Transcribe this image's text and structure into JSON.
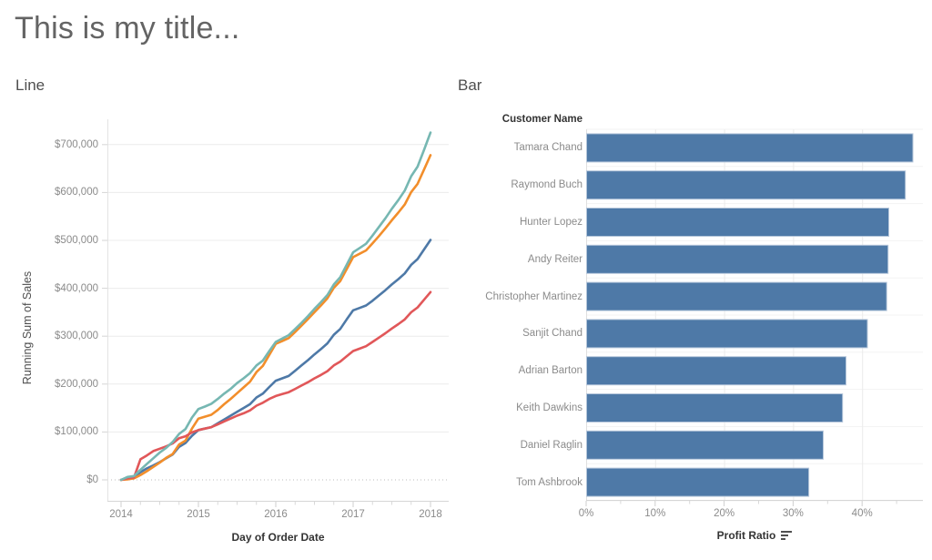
{
  "page": {
    "title": "This is my title..."
  },
  "line_panel": {
    "title": "Line"
  },
  "bar_panel": {
    "title": "Bar"
  },
  "chart_data": [
    {
      "id": "line-chart",
      "type": "line",
      "panel_title": "Line",
      "xlabel": "Day of Order Date",
      "ylabel": "Running Sum of Sales",
      "x_tick_labels": [
        "2014",
        "2015",
        "2016",
        "2017",
        "2018"
      ],
      "x_tick_years": [
        2014,
        2015,
        2016,
        2017,
        2018
      ],
      "y_tick_labels": [
        "$0",
        "$100,000",
        "$200,000",
        "$300,000",
        "$400,000",
        "$500,000",
        "$600,000",
        "$700,000"
      ],
      "y_tick_values_k": [
        0,
        100,
        200,
        300,
        400,
        500,
        600,
        700
      ],
      "x_start_year": 2014,
      "x_step_years": 0.0833333,
      "values_unit": "USD thousands, running sum of sales",
      "grid": "horizontal",
      "zero_line": "dotted",
      "series": [
        {
          "name": "blue",
          "color": "#4e79a7",
          "values": [
            0,
            4,
            6,
            16,
            24,
            30,
            37,
            45,
            53,
            69,
            77,
            92,
            104,
            107,
            110,
            118,
            126,
            134,
            142,
            150,
            158,
            172,
            180,
            194,
            207,
            212,
            217,
            228,
            239,
            250,
            262,
            273,
            285,
            303,
            315,
            335,
            354,
            359,
            364,
            374,
            385,
            396,
            408,
            419,
            431,
            449,
            461,
            481,
            501
          ]
        },
        {
          "name": "orange",
          "color": "#f28e2b",
          "values": [
            0,
            1,
            3,
            10,
            18,
            27,
            36,
            46,
            54,
            74,
            82,
            107,
            128,
            132,
            136,
            146,
            158,
            169,
            181,
            193,
            205,
            225,
            238,
            261,
            284,
            290,
            296,
            309,
            322,
            336,
            350,
            364,
            379,
            401,
            415,
            440,
            465,
            472,
            479,
            494,
            509,
            525,
            542,
            558,
            575,
            601,
            618,
            648,
            678
          ]
        },
        {
          "name": "red",
          "color": "#e15759",
          "values": [
            0,
            3,
            5,
            43,
            51,
            60,
            65,
            70,
            76,
            87,
            91,
            99,
            104,
            107,
            110,
            116,
            122,
            128,
            134,
            139,
            145,
            155,
            161,
            169,
            175,
            179,
            183,
            190,
            197,
            204,
            212,
            219,
            227,
            239,
            247,
            258,
            269,
            274,
            279,
            288,
            297,
            306,
            316,
            325,
            335,
            350,
            360,
            376,
            392
          ]
        },
        {
          "name": "teal",
          "color": "#76b7b2",
          "values": [
            0,
            6,
            8,
            21,
            33,
            45,
            57,
            67,
            79,
            96,
            106,
            130,
            148,
            153,
            159,
            169,
            180,
            190,
            202,
            212,
            223,
            239,
            249,
            269,
            288,
            295,
            302,
            315,
            328,
            342,
            357,
            371,
            386,
            408,
            423,
            449,
            475,
            484,
            493,
            510,
            528,
            546,
            566,
            584,
            604,
            634,
            654,
            689,
            725
          ]
        }
      ]
    },
    {
      "id": "bar-chart",
      "type": "bar",
      "panel_title": "Bar",
      "orientation": "horizontal",
      "col_header": "Customer Name",
      "xlabel": "Profit Ratio",
      "sort": "descending",
      "sort_icon": "sort-descending",
      "bar_color": "#4e79a7",
      "categories": [
        "Tamara Chand",
        "Raymond Buch",
        "Hunter Lopez",
        "Andy Reiter",
        "Christopher Martinez",
        "Sanjit Chand",
        "Adrian Barton",
        "Keith Dawkins",
        "Daniel Raglin",
        "Tom Ashbrook"
      ],
      "values_pct": [
        47.3,
        46.2,
        43.8,
        43.7,
        43.5,
        40.7,
        37.6,
        37.1,
        34.3,
        32.2
      ],
      "x_tick_labels": [
        "0%",
        "10%",
        "20%",
        "30%",
        "40%"
      ],
      "x_tick_values_pct": [
        0,
        10,
        20,
        30,
        40
      ],
      "xlim_pct": [
        0,
        48.8
      ]
    }
  ]
}
